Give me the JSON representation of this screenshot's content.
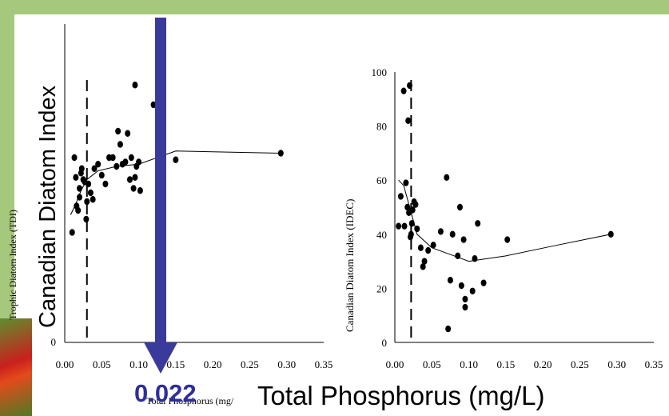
{
  "overlay": {
    "big_ylabel": "Canadian Diatom Index",
    "tp_value": "0.022",
    "tp_label": "Total Phosphorus (mg/L)",
    "small_xlabel": "Total Phosphorus (mg/"
  },
  "colors": {
    "arrow": "#3a3a9c",
    "frame": "#a5c87c",
    "points": "#000000"
  },
  "chart_data": [
    {
      "type": "scatter",
      "title": "",
      "ylabel": "Trophic Diatom Index (TDI)",
      "xlabel": "Total Phosphorus (mg/",
      "xlim": [
        0,
        0.35
      ],
      "xticks": [
        "0.00",
        "0.05",
        "0.10",
        "0.15",
        "0.20",
        "0.25",
        "0.30",
        "0.35"
      ],
      "ylim_visible_tick": "0",
      "threshold_x": 0.03,
      "points": [
        {
          "x": 0.01,
          "y": 50
        },
        {
          "x": 0.013,
          "y": 84
        },
        {
          "x": 0.015,
          "y": 75
        },
        {
          "x": 0.016,
          "y": 62
        },
        {
          "x": 0.018,
          "y": 60
        },
        {
          "x": 0.02,
          "y": 70
        },
        {
          "x": 0.02,
          "y": 66
        },
        {
          "x": 0.022,
          "y": 77
        },
        {
          "x": 0.023,
          "y": 79
        },
        {
          "x": 0.025,
          "y": 74
        },
        {
          "x": 0.027,
          "y": 73
        },
        {
          "x": 0.029,
          "y": 56
        },
        {
          "x": 0.03,
          "y": 64
        },
        {
          "x": 0.032,
          "y": 72
        },
        {
          "x": 0.035,
          "y": 68
        },
        {
          "x": 0.038,
          "y": 65
        },
        {
          "x": 0.04,
          "y": 79
        },
        {
          "x": 0.045,
          "y": 81
        },
        {
          "x": 0.05,
          "y": 76
        },
        {
          "x": 0.055,
          "y": 72
        },
        {
          "x": 0.06,
          "y": 84
        },
        {
          "x": 0.065,
          "y": 84
        },
        {
          "x": 0.07,
          "y": 80
        },
        {
          "x": 0.072,
          "y": 96
        },
        {
          "x": 0.075,
          "y": 90
        },
        {
          "x": 0.078,
          "y": 81
        },
        {
          "x": 0.082,
          "y": 82
        },
        {
          "x": 0.085,
          "y": 95
        },
        {
          "x": 0.088,
          "y": 74
        },
        {
          "x": 0.09,
          "y": 84
        },
        {
          "x": 0.093,
          "y": 70
        },
        {
          "x": 0.095,
          "y": 75
        },
        {
          "x": 0.097,
          "y": 80
        },
        {
          "x": 0.1,
          "y": 82
        },
        {
          "x": 0.102,
          "y": 69
        },
        {
          "x": 0.095,
          "y": 117
        },
        {
          "x": 0.12,
          "y": 108
        },
        {
          "x": 0.15,
          "y": 83
        },
        {
          "x": 0.292,
          "y": 86
        }
      ],
      "trend": [
        {
          "x": 0.008,
          "y": 58
        },
        {
          "x": 0.015,
          "y": 63
        },
        {
          "x": 0.022,
          "y": 69
        },
        {
          "x": 0.03,
          "y": 74
        },
        {
          "x": 0.045,
          "y": 78
        },
        {
          "x": 0.07,
          "y": 80
        },
        {
          "x": 0.1,
          "y": 81
        },
        {
          "x": 0.15,
          "y": 87
        },
        {
          "x": 0.292,
          "y": 86
        }
      ]
    },
    {
      "type": "scatter",
      "title": "",
      "ylabel": "Canadian Diatom Index (IDEC)",
      "xlabel": "Total Phosphorus (mg/L)",
      "xlim": [
        0,
        0.35
      ],
      "ylim": [
        0,
        100
      ],
      "yticks": [
        "0",
        "20",
        "40",
        "60",
        "80",
        "100"
      ],
      "xticks": [
        "0.00",
        "0.05",
        "0.10",
        "0.15",
        "0.20",
        "0.25",
        "0.30",
        "0.35"
      ],
      "threshold_x": 0.022,
      "points": [
        {
          "x": 0.005,
          "y": 43
        },
        {
          "x": 0.008,
          "y": 54
        },
        {
          "x": 0.012,
          "y": 93
        },
        {
          "x": 0.013,
          "y": 43
        },
        {
          "x": 0.015,
          "y": 59
        },
        {
          "x": 0.017,
          "y": 50
        },
        {
          "x": 0.018,
          "y": 82
        },
        {
          "x": 0.019,
          "y": 48
        },
        {
          "x": 0.02,
          "y": 95
        },
        {
          "x": 0.021,
          "y": 39
        },
        {
          "x": 0.022,
          "y": 40
        },
        {
          "x": 0.023,
          "y": 44
        },
        {
          "x": 0.024,
          "y": 49
        },
        {
          "x": 0.026,
          "y": 52
        },
        {
          "x": 0.028,
          "y": 51
        },
        {
          "x": 0.03,
          "y": 42
        },
        {
          "x": 0.035,
          "y": 35
        },
        {
          "x": 0.038,
          "y": 28
        },
        {
          "x": 0.04,
          "y": 30
        },
        {
          "x": 0.045,
          "y": 34
        },
        {
          "x": 0.052,
          "y": 36
        },
        {
          "x": 0.062,
          "y": 41
        },
        {
          "x": 0.07,
          "y": 61
        },
        {
          "x": 0.072,
          "y": 5
        },
        {
          "x": 0.075,
          "y": 23
        },
        {
          "x": 0.078,
          "y": 40
        },
        {
          "x": 0.085,
          "y": 32
        },
        {
          "x": 0.088,
          "y": 50
        },
        {
          "x": 0.09,
          "y": 21
        },
        {
          "x": 0.093,
          "y": 38
        },
        {
          "x": 0.095,
          "y": 16
        },
        {
          "x": 0.095,
          "y": 13
        },
        {
          "x": 0.105,
          "y": 19
        },
        {
          "x": 0.108,
          "y": 31
        },
        {
          "x": 0.112,
          "y": 44
        },
        {
          "x": 0.12,
          "y": 22
        },
        {
          "x": 0.152,
          "y": 38
        },
        {
          "x": 0.292,
          "y": 40
        }
      ],
      "trend": [
        {
          "x": 0.005,
          "y": 60
        },
        {
          "x": 0.012,
          "y": 58
        },
        {
          "x": 0.02,
          "y": 50
        },
        {
          "x": 0.03,
          "y": 40
        },
        {
          "x": 0.05,
          "y": 35
        },
        {
          "x": 0.08,
          "y": 32
        },
        {
          "x": 0.1,
          "y": 30
        },
        {
          "x": 0.15,
          "y": 32
        },
        {
          "x": 0.22,
          "y": 36
        },
        {
          "x": 0.292,
          "y": 40
        }
      ]
    }
  ]
}
